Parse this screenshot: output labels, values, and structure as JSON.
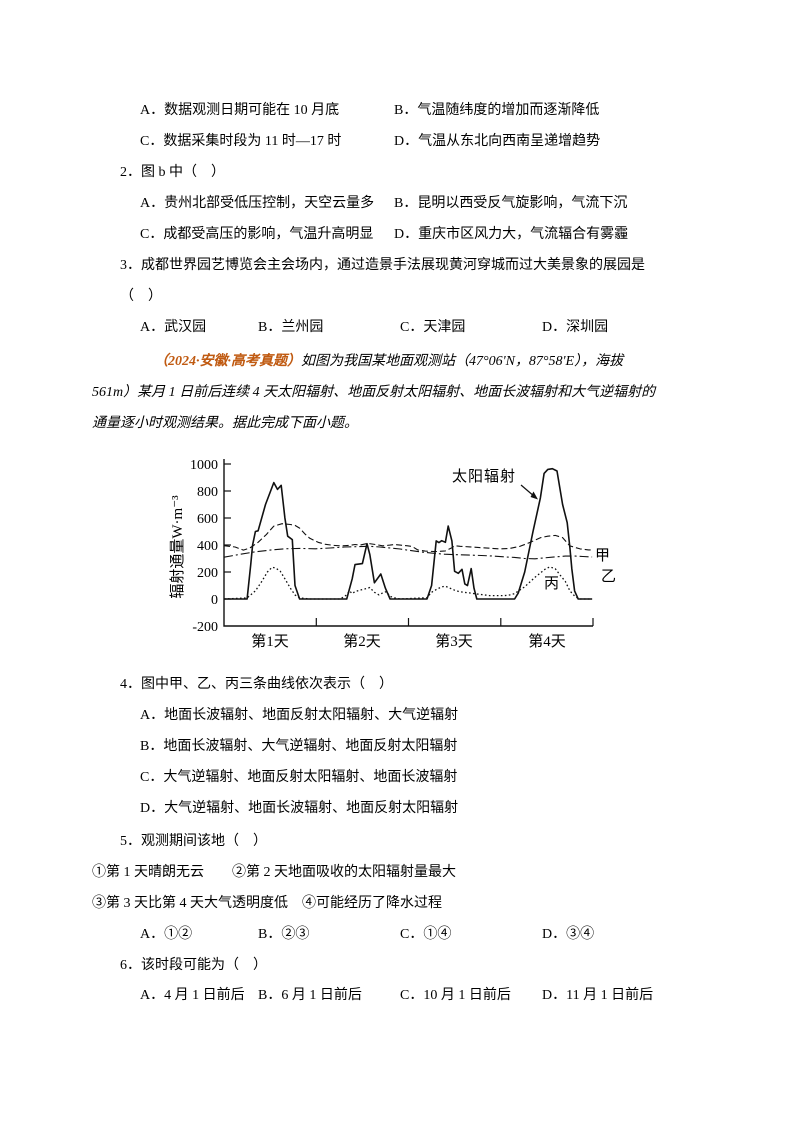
{
  "exam": {
    "q1": {
      "optA": "A．数据观测日期可能在 10 月底",
      "optB": "B．气温随纬度的增加而逐渐降低",
      "optC": "C．数据采集时段为 11 时—17 时",
      "optD": "D．气温从东北向西南呈递增趋势"
    },
    "q2": {
      "stem": "2．图 b 中（　）",
      "optA": "A．贵州北部受低压控制，天空云量多",
      "optB": "B．昆明以西受反气旋影响，气流下沉",
      "optC": "C．成都受高压的影响，气温升高明显",
      "optD": "D．重庆市区风力大，气流辐合有雾霾"
    },
    "q3": {
      "stem": "3．成都世界园艺博览会主会场内，通过造景手法展现黄河穿城而过大美景象的展园是",
      "stem2": "（　）",
      "optA": "A．武汉园",
      "optB": "B．兰州园",
      "optC": "C．天津园",
      "optD": "D．深圳园"
    },
    "passage": {
      "tag": "（2024·安徽·高考真题）",
      "tag_color": "#C05A11",
      "line1": "如图为我国某地面观测站（47°06'N，87°58'E），海拔",
      "line2": "561m）某月 1 日前后连续 4 天太阳辐射、地面反射太阳辐射、地面长波辐射和大气逆辐射的",
      "line3": "通量逐小时观测结果。据此完成下面小题。"
    },
    "q4": {
      "stem": "4．图中甲、乙、丙三条曲线依次表示（　）",
      "optA": "A．地面长波辐射、地面反射太阳辐射、大气逆辐射",
      "optB": "B．地面长波辐射、大气逆辐射、地面反射太阳辐射",
      "optC": "C．大气逆辐射、地面反射太阳辐射、地面长波辐射",
      "optD": "D．大气逆辐射、地面长波辐射、地面反射太阳辐射"
    },
    "q5": {
      "stem": "5．观测期间该地（　）",
      "sub1": "①第 1 天晴朗无云　　②第 2 天地面吸收的太阳辐射量最大",
      "sub2": "③第 3 天比第 4 天大气透明度低　④可能经历了降水过程",
      "optA": "A．①②",
      "optB": "B．②③",
      "optC": "C．①④",
      "optD": "D．③④"
    },
    "q6": {
      "stem": "6．该时段可能为（　）",
      "optA": "A．4 月 1 日前后",
      "optB": "B．6 月 1 日前后",
      "optC": "C．10 月 1 日前后",
      "optD": "D．11 月 1 日前后"
    }
  },
  "chart_data": {
    "type": "line",
    "ylabel": "辐射通量W·m⁻³",
    "ylim": [
      -200,
      1000
    ],
    "yticks": [
      "1000",
      "800",
      "600",
      "400",
      "200",
      "0",
      "-200"
    ],
    "x_categories": [
      "第1天",
      "第2天",
      "第3天",
      "第4天"
    ],
    "annotation": "太阳辐射",
    "grid": false,
    "line_color": "#111111",
    "series": [
      {
        "name": "太阳辐射",
        "style": "solid",
        "points": [
          [
            0,
            0
          ],
          [
            0.25,
            0
          ],
          [
            0.29,
            260
          ],
          [
            0.31,
            400
          ],
          [
            0.34,
            500
          ],
          [
            0.37,
            505
          ],
          [
            0.45,
            700
          ],
          [
            0.54,
            862
          ],
          [
            0.58,
            812
          ],
          [
            0.62,
            842
          ],
          [
            0.66,
            600
          ],
          [
            0.69,
            465
          ],
          [
            0.74,
            440
          ],
          [
            0.77,
            100
          ],
          [
            0.82,
            0
          ],
          [
            1.33,
            0
          ],
          [
            1.39,
            150
          ],
          [
            1.42,
            255
          ],
          [
            1.5,
            262
          ],
          [
            1.55,
            410
          ],
          [
            1.58,
            330
          ],
          [
            1.63,
            120
          ],
          [
            1.7,
            185
          ],
          [
            1.75,
            80
          ],
          [
            1.8,
            0
          ],
          [
            2.2,
            0
          ],
          [
            2.25,
            100
          ],
          [
            2.3,
            430
          ],
          [
            2.33,
            418
          ],
          [
            2.36,
            432
          ],
          [
            2.4,
            420
          ],
          [
            2.43,
            540
          ],
          [
            2.47,
            430
          ],
          [
            2.5,
            205
          ],
          [
            2.54,
            190
          ],
          [
            2.58,
            220
          ],
          [
            2.61,
            112
          ],
          [
            2.64,
            100
          ],
          [
            2.68,
            225
          ],
          [
            2.71,
            80
          ],
          [
            2.74,
            0
          ],
          [
            3.15,
            0
          ],
          [
            3.19,
            45
          ],
          [
            3.26,
            200
          ],
          [
            3.35,
            500
          ],
          [
            3.43,
            750
          ],
          [
            3.47,
            930
          ],
          [
            3.51,
            960
          ],
          [
            3.56,
            965
          ],
          [
            3.61,
            948
          ],
          [
            3.67,
            700
          ],
          [
            3.72,
            565
          ],
          [
            3.75,
            380
          ],
          [
            3.77,
            225
          ],
          [
            3.8,
            60
          ],
          [
            3.84,
            0
          ],
          [
            3.99,
            0
          ]
        ]
      },
      {
        "name": "甲",
        "style": "dashed",
        "points": [
          [
            0,
            395
          ],
          [
            0.12,
            385
          ],
          [
            0.21,
            362
          ],
          [
            0.28,
            378
          ],
          [
            0.37,
            420
          ],
          [
            0.46,
            478
          ],
          [
            0.54,
            540
          ],
          [
            0.63,
            558
          ],
          [
            0.72,
            552
          ],
          [
            0.77,
            545
          ],
          [
            0.82,
            525
          ],
          [
            0.88,
            480
          ],
          [
            0.93,
            450
          ],
          [
            1.02,
            420
          ],
          [
            1.1,
            405
          ],
          [
            1.18,
            398
          ],
          [
            1.26,
            393
          ],
          [
            1.37,
            398
          ],
          [
            1.42,
            404
          ],
          [
            1.47,
            399
          ],
          [
            1.56,
            412
          ],
          [
            1.64,
            404
          ],
          [
            1.72,
            394
          ],
          [
            1.8,
            399
          ],
          [
            1.85,
            404
          ],
          [
            1.91,
            399
          ],
          [
            1.99,
            394
          ],
          [
            2.04,
            389
          ],
          [
            2.1,
            364
          ],
          [
            2.18,
            355
          ],
          [
            2.29,
            351
          ],
          [
            2.4,
            356
          ],
          [
            2.47,
            380
          ],
          [
            2.5,
            394
          ],
          [
            2.56,
            390
          ],
          [
            2.67,
            386
          ],
          [
            2.77,
            381
          ],
          [
            2.88,
            376
          ],
          [
            2.99,
            371
          ],
          [
            3.1,
            375
          ],
          [
            3.21,
            390
          ],
          [
            3.32,
            420
          ],
          [
            3.43,
            454
          ],
          [
            3.51,
            465
          ],
          [
            3.59,
            471
          ],
          [
            3.67,
            455
          ],
          [
            3.75,
            393
          ],
          [
            3.86,
            371
          ],
          [
            3.95,
            364
          ],
          [
            3.99,
            363
          ]
        ]
      },
      {
        "name": "乙",
        "style": "dashdot",
        "points": [
          [
            0,
            310
          ],
          [
            0.17,
            330
          ],
          [
            0.34,
            350
          ],
          [
            0.5,
            362
          ],
          [
            0.66,
            372
          ],
          [
            0.82,
            375
          ],
          [
            0.99,
            372
          ],
          [
            1.15,
            378
          ],
          [
            1.31,
            385
          ],
          [
            1.47,
            388
          ],
          [
            1.58,
            390
          ],
          [
            1.69,
            385
          ],
          [
            1.8,
            378
          ],
          [
            1.91,
            370
          ],
          [
            1.99,
            362
          ],
          [
            2.12,
            350
          ],
          [
            2.25,
            340
          ],
          [
            2.39,
            332
          ],
          [
            2.53,
            328
          ],
          [
            2.66,
            325
          ],
          [
            2.79,
            322
          ],
          [
            2.93,
            318
          ],
          [
            3.04,
            312
          ],
          [
            3.15,
            308
          ],
          [
            3.26,
            300
          ],
          [
            3.37,
            298
          ],
          [
            3.48,
            305
          ],
          [
            3.59,
            312
          ],
          [
            3.7,
            318
          ],
          [
            3.81,
            318
          ],
          [
            3.89,
            315
          ],
          [
            3.99,
            311
          ]
        ]
      },
      {
        "name": "丙",
        "style": "dotted",
        "points": [
          [
            0,
            0
          ],
          [
            0.25,
            8
          ],
          [
            0.34,
            60
          ],
          [
            0.41,
            130
          ],
          [
            0.47,
            200
          ],
          [
            0.52,
            235
          ],
          [
            0.56,
            230
          ],
          [
            0.61,
            205
          ],
          [
            0.66,
            150
          ],
          [
            0.72,
            80
          ],
          [
            0.77,
            30
          ],
          [
            0.82,
            8
          ],
          [
            0.93,
            0
          ],
          [
            1.26,
            0
          ],
          [
            1.33,
            30
          ],
          [
            1.36,
            60
          ],
          [
            1.39,
            40
          ],
          [
            1.42,
            55
          ],
          [
            1.47,
            65
          ],
          [
            1.53,
            75
          ],
          [
            1.58,
            85
          ],
          [
            1.63,
            50
          ],
          [
            1.68,
            30
          ],
          [
            1.72,
            45
          ],
          [
            1.76,
            55
          ],
          [
            1.8,
            20
          ],
          [
            1.85,
            8
          ],
          [
            1.91,
            0
          ],
          [
            2.2,
            10
          ],
          [
            2.25,
            50
          ],
          [
            2.3,
            70
          ],
          [
            2.36,
            90
          ],
          [
            2.4,
            95
          ],
          [
            2.45,
            80
          ],
          [
            2.5,
            65
          ],
          [
            2.55,
            55
          ],
          [
            2.6,
            50
          ],
          [
            2.66,
            45
          ],
          [
            2.71,
            40
          ],
          [
            2.77,
            35
          ],
          [
            2.82,
            30
          ],
          [
            2.88,
            25
          ],
          [
            2.93,
            25
          ],
          [
            2.99,
            25
          ],
          [
            3.04,
            25
          ],
          [
            3.1,
            30
          ],
          [
            3.15,
            40
          ],
          [
            3.26,
            90
          ],
          [
            3.37,
            160
          ],
          [
            3.48,
            220
          ],
          [
            3.53,
            238
          ],
          [
            3.59,
            225
          ],
          [
            3.64,
            180
          ],
          [
            3.7,
            130
          ],
          [
            3.75,
            60
          ],
          [
            3.81,
            15
          ],
          [
            3.86,
            0
          ],
          [
            3.99,
            0
          ]
        ]
      }
    ]
  }
}
